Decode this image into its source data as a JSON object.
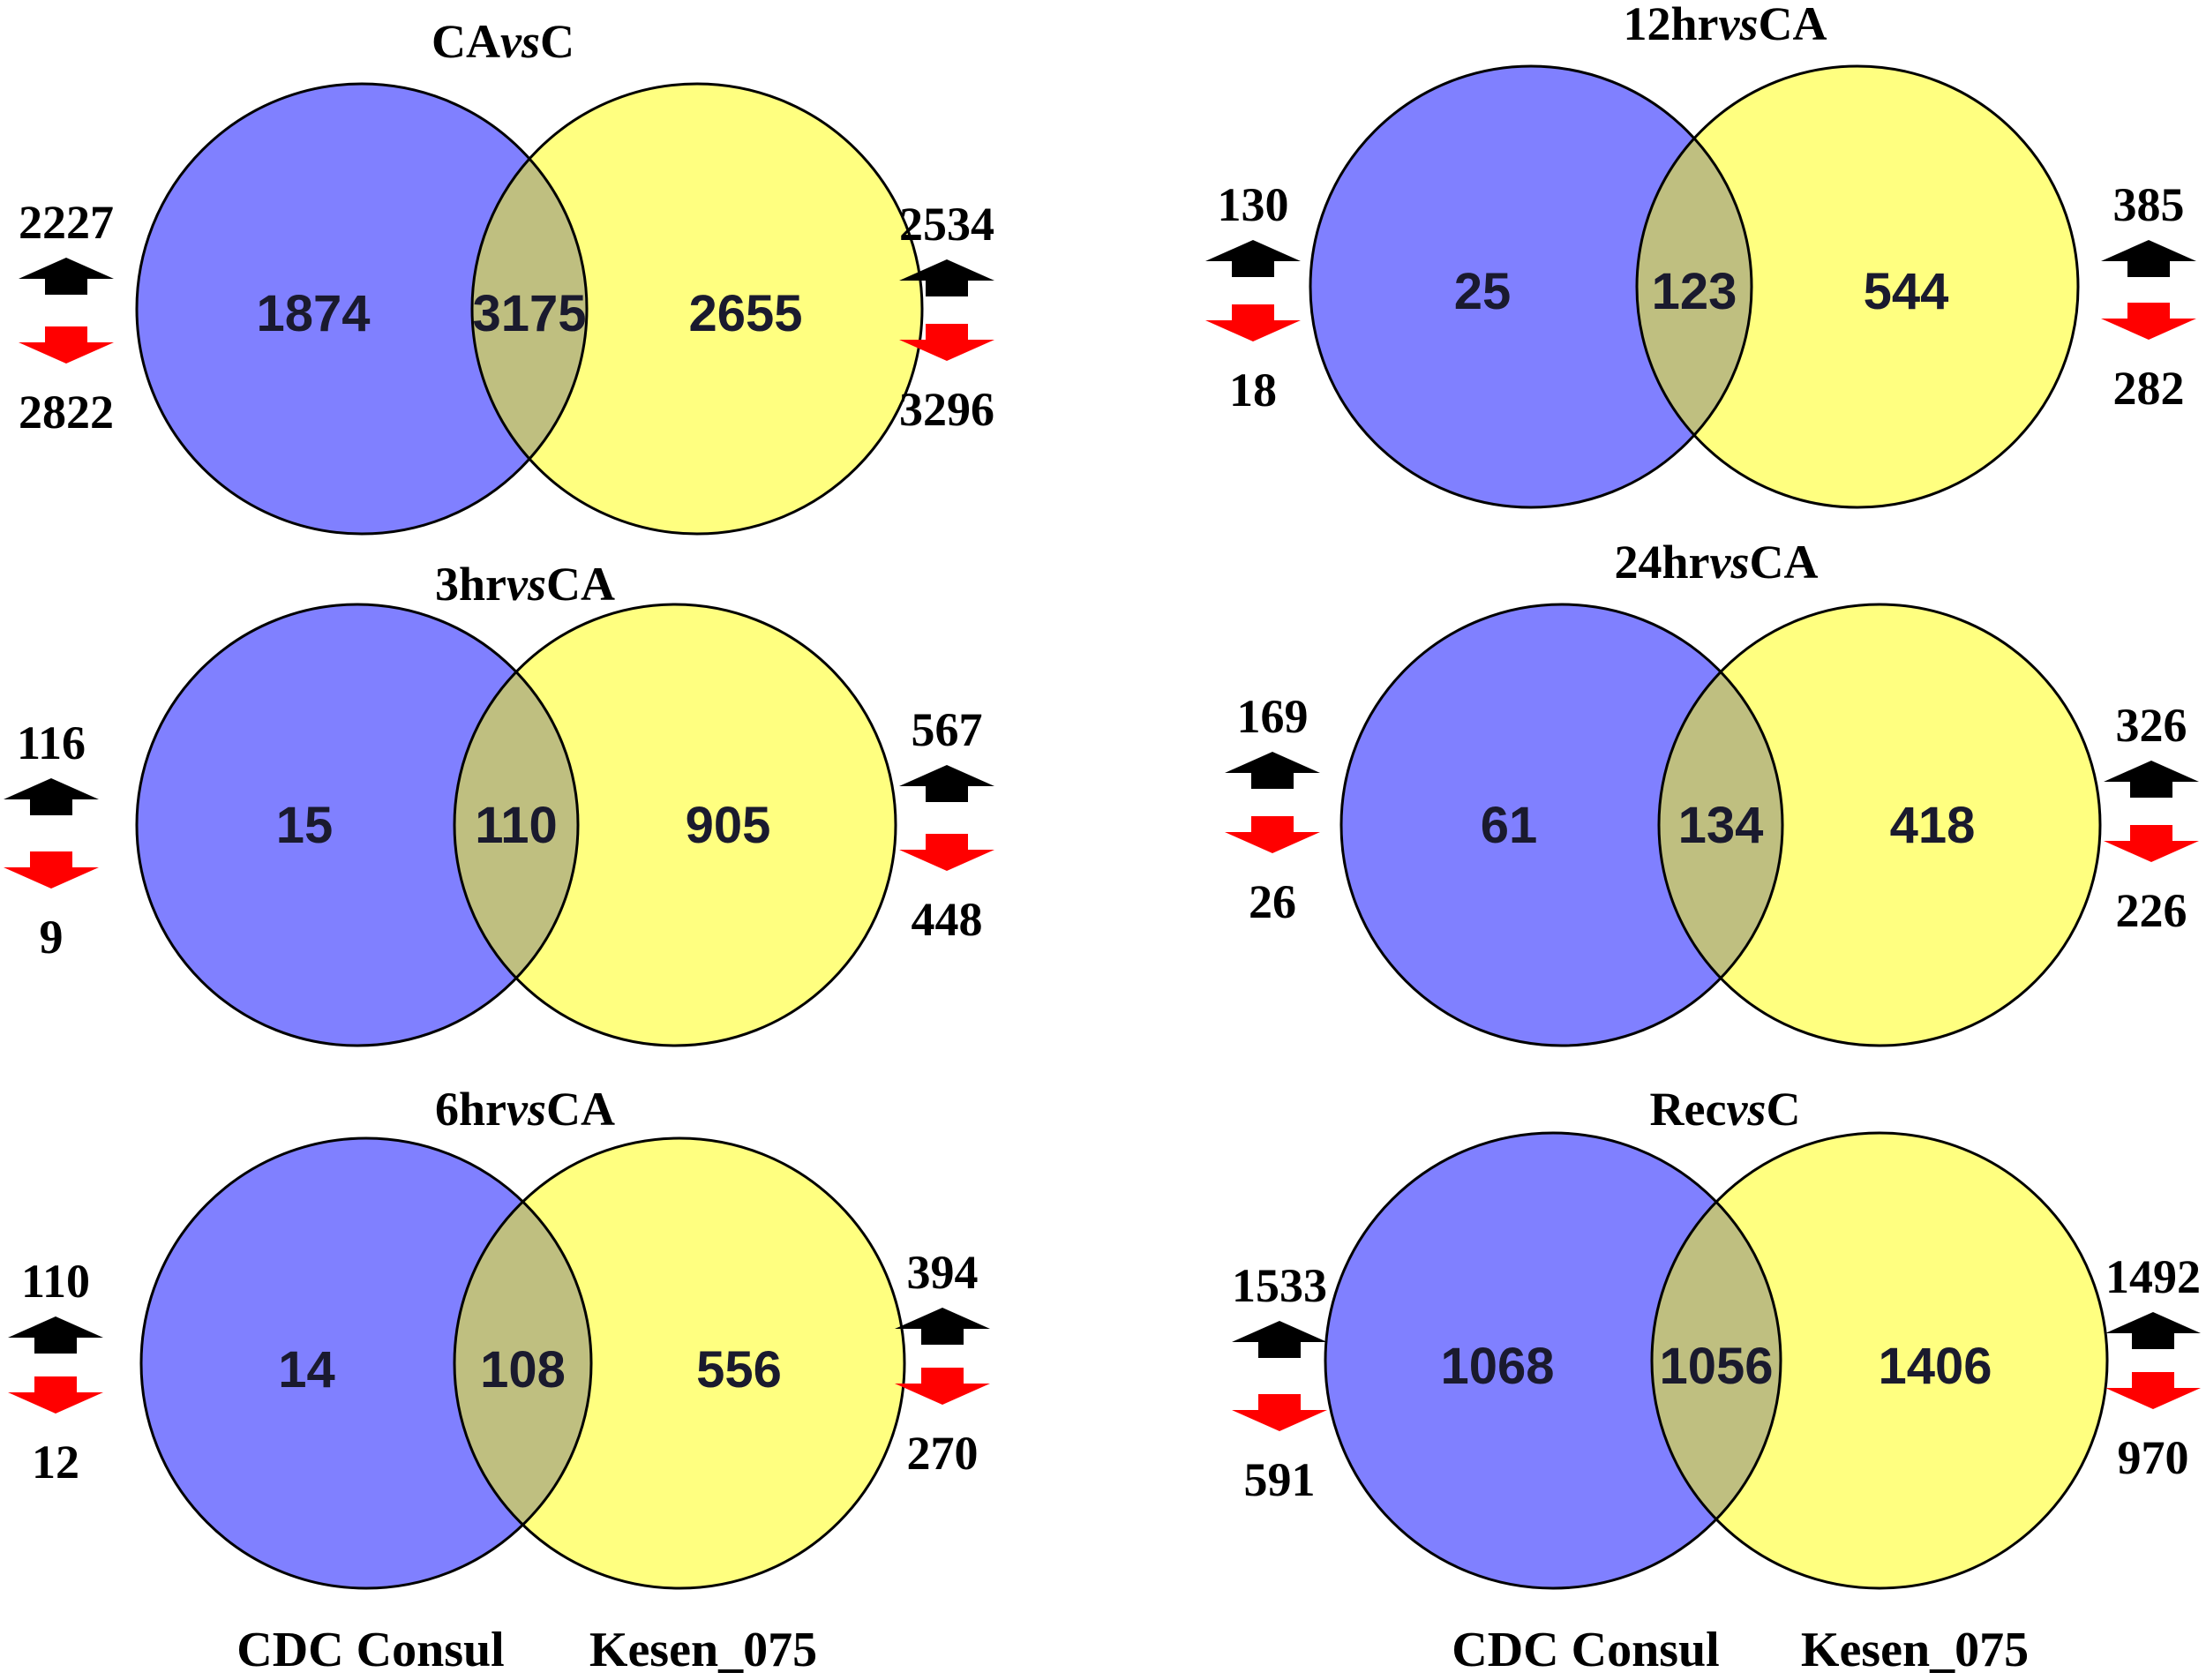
{
  "colors": {
    "left_circle": "#8080ff",
    "right_circle": "#ffff80",
    "overlap": "#bfbf80",
    "up_arrow": "#000000",
    "down_arrow": "#ff0000"
  },
  "icons": {
    "up": "up-arrow-icon",
    "down": "down-arrow-icon"
  },
  "genotype_labels": {
    "left": "CDC Consul",
    "right": "Kesen_075"
  },
  "panels": [
    {
      "title_pre": "CA",
      "title_vs": "vs",
      "title_post": "C",
      "left_only": "1874",
      "shared": "3175",
      "right_only": "2655",
      "left_up": "2227",
      "left_down": "2822",
      "right_up": "2534",
      "right_down": "3296"
    },
    {
      "title_pre": "12hr",
      "title_vs": "vs",
      "title_post": "CA",
      "left_only": "25",
      "shared": "123",
      "right_only": "544",
      "left_up": "130",
      "left_down": "18",
      "right_up": "385",
      "right_down": "282"
    },
    {
      "title_pre": "3hr",
      "title_vs": "vs",
      "title_post": "CA",
      "left_only": "15",
      "shared": "110",
      "right_only": "905",
      "left_up": "116",
      "left_down": "9",
      "right_up": "567",
      "right_down": "448"
    },
    {
      "title_pre": "24hr",
      "title_vs": "vs",
      "title_post": "CA",
      "left_only": "61",
      "shared": "134",
      "right_only": "418",
      "left_up": "169",
      "left_down": "26",
      "right_up": "326",
      "right_down": "226"
    },
    {
      "title_pre": "6hr",
      "title_vs": "vs",
      "title_post": "CA",
      "left_only": "14",
      "shared": "108",
      "right_only": "556",
      "left_up": "110",
      "left_down": "12",
      "right_up": "394",
      "right_down": "270"
    },
    {
      "title_pre": "Rec",
      "title_vs": "vs",
      "title_post": "C",
      "left_only": "1068",
      "shared": "1056",
      "right_only": "1406",
      "left_up": "1533",
      "left_down": "591",
      "right_up": "1492",
      "right_down": "970"
    }
  ]
}
